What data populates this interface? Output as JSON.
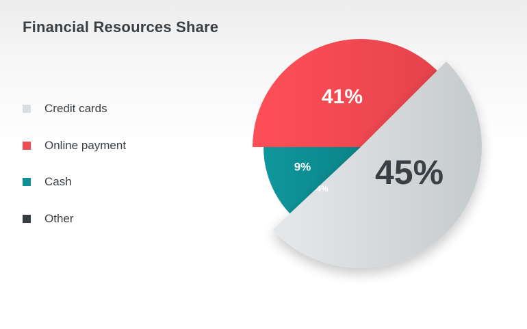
{
  "chart_data": {
    "type": "pie",
    "title": "Financial Resources Share",
    "categories": [
      "Credit cards",
      "Online payment",
      "Cash",
      "Other"
    ],
    "values": [
      45,
      41,
      9,
      4
    ],
    "labels": [
      "45%",
      "41%",
      "9%",
      "4%"
    ],
    "colors": [
      "#d9dde0",
      "#f04a52",
      "#0d9196",
      "#363d42"
    ],
    "legend_position": "left"
  }
}
